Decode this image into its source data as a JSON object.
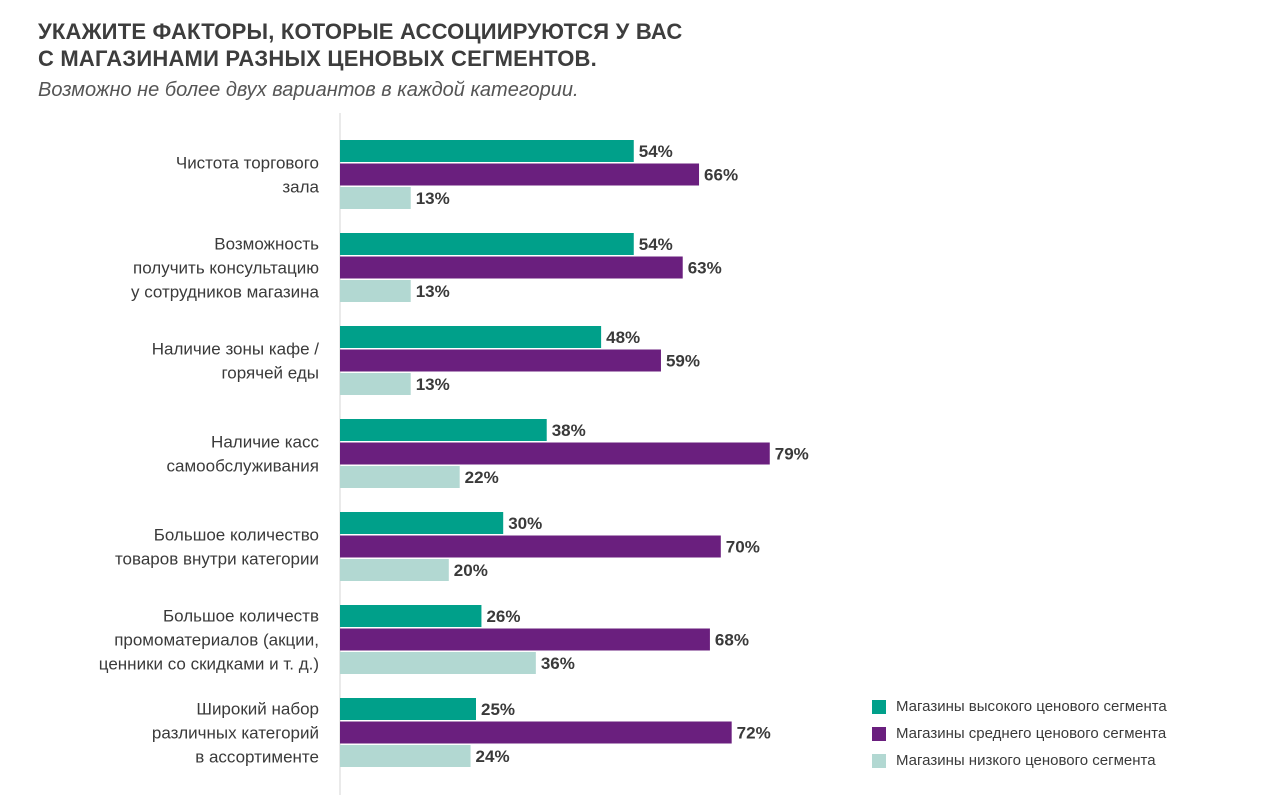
{
  "chart_data": {
    "type": "bar",
    "orientation": "horizontal",
    "title_lines": [
      "УКАЖИТЕ ФАКТОРЫ, КОТОРЫЕ АССОЦИИРУЮТСЯ У ВАС",
      "С МАГАЗИНАМИ РАЗНЫХ ЦЕНОВЫХ СЕГМЕНТОВ."
    ],
    "subtitle": "Возможно не более двух вариантов в каждой категории.",
    "categories": [
      [
        "Чистота торгового",
        "зала"
      ],
      [
        "Возможность",
        "получить консультацию",
        "у сотрудников магазина"
      ],
      [
        "Наличие зоны кафе /",
        "горячей еды"
      ],
      [
        "Наличие касс",
        "самообслуживания"
      ],
      [
        "Большое количество",
        "товаров внутри категории"
      ],
      [
        "Большое количеств",
        "промоматериалов (акции,",
        "ценники со скидками и т. д.)"
      ],
      [
        "Широкий набор",
        "различных категорий",
        "в ассортименте"
      ]
    ],
    "series": [
      {
        "name": "Магазины высокого ценового сегмента",
        "color": "#00a08a",
        "values": [
          54,
          54,
          48,
          38,
          30,
          26,
          25
        ]
      },
      {
        "name": "Магазины среднего ценового сегмента",
        "color": "#6a1f7e",
        "values": [
          66,
          63,
          59,
          79,
          70,
          68,
          72
        ]
      },
      {
        "name": "Магазины низкого ценового сегмента",
        "color": "#b2d8d2",
        "values": [
          13,
          13,
          13,
          22,
          20,
          36,
          24
        ]
      }
    ],
    "value_suffix": "%",
    "xlim": [
      0,
      100
    ],
    "grid": false,
    "legend_position": "bottom-right"
  }
}
